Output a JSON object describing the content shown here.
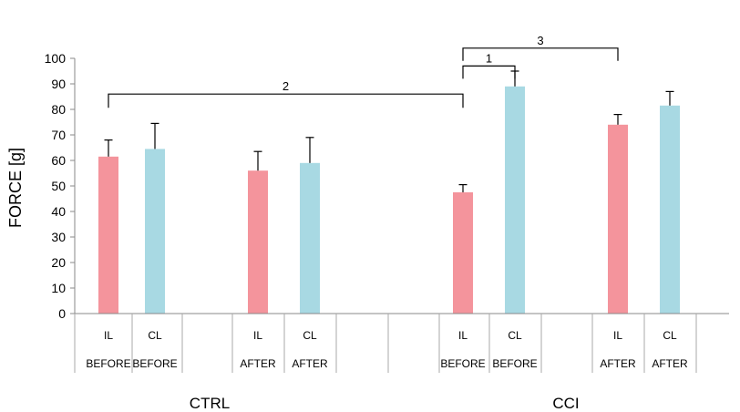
{
  "chart_data": {
    "type": "bar",
    "ylabel": "FORCE [g]",
    "ylim": [
      0,
      100
    ],
    "yticks": [
      0,
      10,
      20,
      30,
      40,
      50,
      60,
      70,
      80,
      90,
      100
    ],
    "grid": false,
    "groups": [
      {
        "label": "CTRL",
        "bars": [
          {
            "side": "IL",
            "phase": "BEFORE",
            "value": 61.5,
            "error": 6.5,
            "color": "#f4949c"
          },
          {
            "side": "CL",
            "phase": "BEFORE",
            "value": 64.5,
            "error": 10,
            "color": "#a8d9e3"
          },
          {
            "side": "IL",
            "phase": "AFTER",
            "value": 56,
            "error": 7.5,
            "color": "#f4949c"
          },
          {
            "side": "CL",
            "phase": "AFTER",
            "value": 59,
            "error": 10,
            "color": "#a8d9e3"
          }
        ]
      },
      {
        "label": "CCI",
        "bars": [
          {
            "side": "IL",
            "phase": "BEFORE",
            "value": 47.5,
            "error": 3,
            "color": "#f4949c"
          },
          {
            "side": "CL",
            "phase": "BEFORE",
            "value": 89,
            "error": 6,
            "color": "#a8d9e3"
          },
          {
            "side": "IL",
            "phase": "AFTER",
            "value": 74,
            "error": 4,
            "color": "#f4949c"
          },
          {
            "side": "CL",
            "phase": "AFTER",
            "value": 81.5,
            "error": 5.5,
            "color": "#a8d9e3"
          }
        ]
      }
    ],
    "annotations": [
      {
        "label": "1",
        "from": "CCI IL BEFORE",
        "to": "CCI CL BEFORE",
        "y": 97
      },
      {
        "label": "2",
        "from": "CTRL IL BEFORE",
        "to": "CCI IL BEFORE",
        "y": 86
      },
      {
        "label": "3",
        "from": "CCI IL BEFORE",
        "to": "CCI IL AFTER",
        "y": 104
      }
    ]
  }
}
